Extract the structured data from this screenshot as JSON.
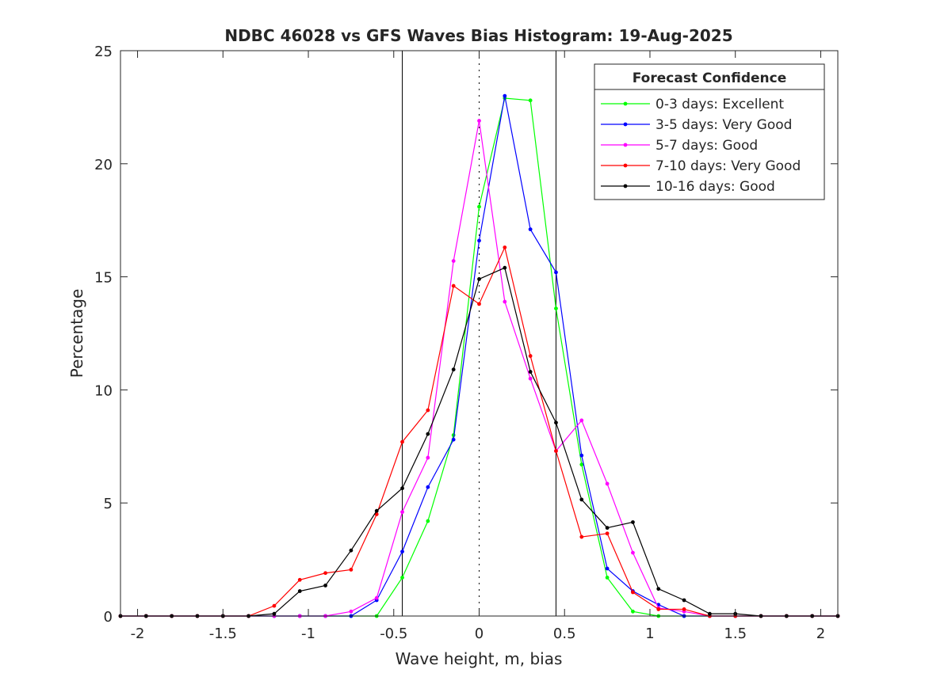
{
  "chart_data": {
    "type": "line",
    "title": "NDBC 46028 vs GFS Waves Bias Histogram: 19-Aug-2025",
    "xlabel": "Wave height, m, bias",
    "ylabel": "Percentage",
    "xlim": [
      -2.1,
      2.1
    ],
    "ylim": [
      0,
      25
    ],
    "xticks": [
      -2,
      -1.5,
      -1,
      -0.5,
      0,
      0.5,
      1,
      1.5,
      2
    ],
    "xtick_labels": [
      "-2",
      "-1.5",
      "-1",
      "-0.5",
      "0",
      "0.5",
      "1",
      "1.5",
      "2"
    ],
    "yticks": [
      0,
      5,
      10,
      15,
      20,
      25
    ],
    "ytick_labels": [
      "0",
      "5",
      "10",
      "15",
      "20",
      "25"
    ],
    "grid": false,
    "reference_lines": [
      {
        "x": -0.45,
        "style": "solid"
      },
      {
        "x": 0,
        "style": "dotted"
      },
      {
        "x": 0.45,
        "style": "solid"
      }
    ],
    "legend": {
      "title": "Forecast Confidence",
      "placement": "top-right"
    },
    "x": [
      -2.1,
      -1.95,
      -1.8,
      -1.65,
      -1.5,
      -1.35,
      -1.2,
      -1.05,
      -0.9,
      -0.75,
      -0.6,
      -0.45,
      -0.3,
      -0.15,
      0,
      0.15,
      0.3,
      0.45,
      0.6,
      0.75,
      0.9,
      1.05,
      1.2,
      1.35,
      1.5,
      1.65,
      1.8,
      1.95,
      2.1
    ],
    "series": [
      {
        "name": "0-3 days: Excellent",
        "color": "#00ff00",
        "values": [
          0,
          0,
          0,
          0,
          0,
          0,
          0,
          0,
          0,
          0,
          0,
          1.7,
          4.2,
          8.0,
          18.1,
          22.9,
          22.8,
          13.6,
          6.7,
          1.7,
          0.2,
          0,
          0,
          0,
          0,
          0,
          0,
          0,
          0
        ]
      },
      {
        "name": "3-5 days: Very Good",
        "color": "#0000ff",
        "values": [
          0,
          0,
          0,
          0,
          0,
          0,
          0,
          0,
          0,
          0,
          0.7,
          2.85,
          5.7,
          7.8,
          16.6,
          23.0,
          17.1,
          15.2,
          7.1,
          2.1,
          1.1,
          0.5,
          0,
          0,
          0,
          0,
          0,
          0,
          0
        ]
      },
      {
        "name": "5-7 days: Good",
        "color": "#ff00ff",
        "values": [
          0,
          0,
          0,
          0,
          0,
          0,
          0,
          0,
          0,
          0.2,
          0.8,
          4.6,
          7.0,
          15.7,
          21.9,
          13.9,
          10.5,
          7.3,
          8.65,
          5.85,
          2.8,
          0.35,
          0.2,
          0,
          0,
          0,
          0,
          0,
          0
        ]
      },
      {
        "name": "7-10 days: Very Good",
        "color": "#ff0000",
        "values": [
          0,
          0,
          0,
          0,
          0,
          0,
          0.45,
          1.6,
          1.9,
          2.05,
          4.5,
          7.7,
          9.1,
          14.6,
          13.8,
          16.3,
          11.5,
          7.3,
          3.5,
          3.65,
          1.05,
          0.3,
          0.3,
          0,
          0,
          0,
          0,
          0,
          0
        ]
      },
      {
        "name": "10-16 days: Good",
        "color": "#000000",
        "values": [
          0,
          0,
          0,
          0,
          0,
          0,
          0.1,
          1.1,
          1.35,
          2.9,
          4.65,
          5.65,
          8.05,
          10.9,
          14.9,
          15.4,
          10.8,
          8.55,
          5.15,
          3.9,
          4.15,
          1.2,
          0.7,
          0.1,
          0.1,
          0,
          0,
          0,
          0
        ]
      }
    ]
  }
}
